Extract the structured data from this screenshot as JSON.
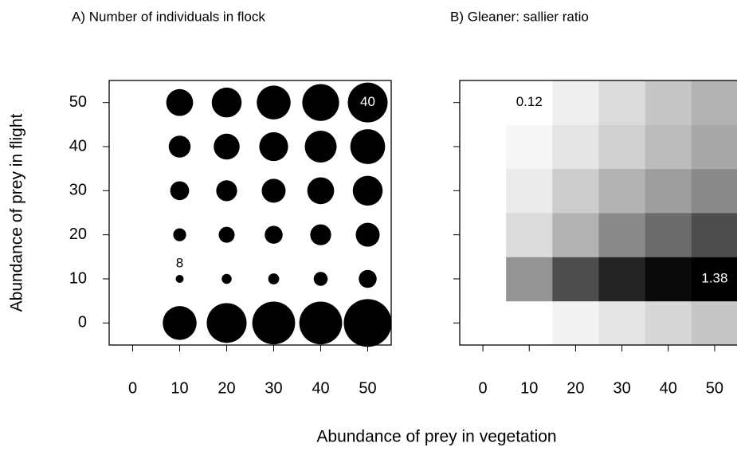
{
  "chart_data": [
    {
      "type": "bubble",
      "title": "A) Number of individuals in flock",
      "xlabel": "Abundance of prey in vegetation",
      "ylabel": "Abundance of prey in flight",
      "x": [
        0,
        10,
        20,
        30,
        40,
        50
      ],
      "y": [
        0,
        10,
        20,
        30,
        40,
        50
      ],
      "z": [
        [
          null,
          34,
          40,
          43,
          43,
          48
        ],
        [
          null,
          8,
          10,
          11,
          14,
          18
        ],
        [
          null,
          13,
          16,
          18,
          21,
          24
        ],
        [
          null,
          19,
          21,
          24,
          27,
          30
        ],
        [
          null,
          22,
          26,
          29,
          32,
          35
        ],
        [
          null,
          27,
          30,
          34,
          37,
          40
        ]
      ],
      "labeled_cells": [
        {
          "row": 1,
          "col": 1,
          "position": "above"
        },
        {
          "row": 5,
          "col": 5,
          "position": "center"
        }
      ],
      "color": "#000000",
      "xlim": [
        -5,
        55
      ],
      "ylim": [
        -5,
        55
      ],
      "xticks": [
        0,
        10,
        20,
        30,
        40,
        50
      ],
      "yticks": [
        0,
        10,
        20,
        30,
        40,
        50
      ],
      "show_ytick_labels": true
    },
    {
      "type": "heatmap",
      "title": "B) Gleaner: sallier ratio",
      "x": [
        0,
        10,
        20,
        30,
        40,
        50
      ],
      "y": [
        0,
        10,
        20,
        30,
        40,
        50
      ],
      "z": [
        [
          null,
          0.12,
          0.18,
          0.25,
          0.32,
          0.4
        ],
        [
          null,
          0.65,
          1.0,
          1.2,
          1.33,
          1.38
        ],
        [
          null,
          0.3,
          0.5,
          0.7,
          0.85,
          1.0
        ],
        [
          null,
          0.22,
          0.37,
          0.5,
          0.6,
          0.7
        ],
        [
          null,
          0.16,
          0.25,
          0.35,
          0.45,
          0.55
        ],
        [
          null,
          0.12,
          0.2,
          0.3,
          0.4,
          0.5
        ]
      ],
      "labeled_cells": [
        {
          "row": 5,
          "col": 1,
          "position": "center"
        },
        {
          "row": 1,
          "col": 5,
          "position": "center"
        }
      ],
      "colorscale": [
        "#ffffff",
        "#000000"
      ],
      "xlim": [
        -5,
        55
      ],
      "ylim": [
        -5,
        55
      ],
      "xticks": [
        0,
        10,
        20,
        30,
        40,
        50
      ],
      "yticks": [
        0,
        10,
        20,
        30,
        40,
        50
      ],
      "show_ytick_labels": false
    }
  ]
}
